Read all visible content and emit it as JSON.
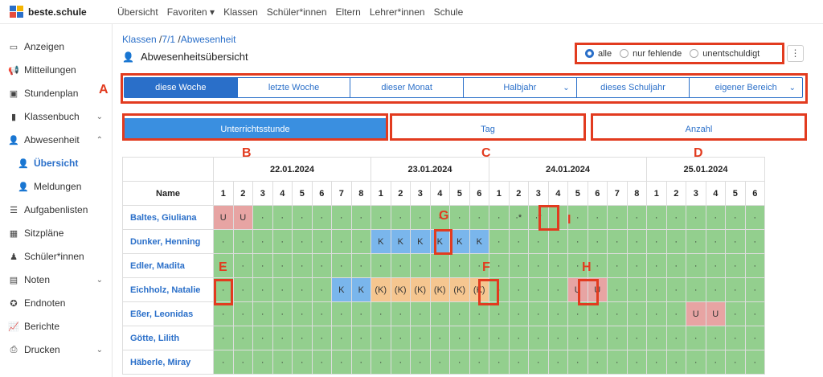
{
  "app": {
    "name": "beste.schule"
  },
  "topnav": [
    "Übersicht",
    "Favoriten ▾",
    "Klassen",
    "Schüler*innen",
    "Eltern",
    "Lehrer*innen",
    "Schule"
  ],
  "sidebar": [
    {
      "label": "Anzeigen",
      "icon": "monitor-icon",
      "glyph": "▭"
    },
    {
      "label": "Mitteilungen",
      "icon": "megaphone-icon",
      "glyph": "📢"
    },
    {
      "label": "Stundenplan",
      "icon": "briefcase-icon",
      "glyph": "▣"
    },
    {
      "label": "Klassenbuch",
      "icon": "book-icon",
      "glyph": "▮",
      "chev": "⌄"
    },
    {
      "label": "Abwesenheit",
      "icon": "user-check-icon",
      "glyph": "👤",
      "chev": "⌃"
    },
    {
      "label": "Übersicht",
      "icon": "user-check-icon",
      "glyph": "👤",
      "sub": true,
      "active": true
    },
    {
      "label": "Meldungen",
      "icon": "user-check-icon",
      "glyph": "👤",
      "sub": true
    },
    {
      "label": "Aufgabenlisten",
      "icon": "list-icon",
      "glyph": "☰"
    },
    {
      "label": "Sitzpläne",
      "icon": "grid-icon",
      "glyph": "▦"
    },
    {
      "label": "Schüler*innen",
      "icon": "person-icon",
      "glyph": "♟"
    },
    {
      "label": "Noten",
      "icon": "document-icon",
      "glyph": "▤",
      "chev": "⌄"
    },
    {
      "label": "Endnoten",
      "icon": "award-icon",
      "glyph": "✪"
    },
    {
      "label": "Berichte",
      "icon": "chart-icon",
      "glyph": "📈"
    },
    {
      "label": "Drucken",
      "icon": "printer-icon",
      "glyph": "⎙",
      "chev": "⌄"
    }
  ],
  "breadcrumb": {
    "part1": "Klassen",
    "part2": "7/1",
    "part3": "Abwesenheit"
  },
  "page_title": "Abwesenheitsübersicht",
  "filter": {
    "options": [
      "alle",
      "nur fehlende",
      "unentschuldigt"
    ],
    "selected": "alle"
  },
  "kebab": "⋮",
  "period_tabs": [
    "diese Woche",
    "letzte Woche",
    "dieser Monat",
    "Halbjahr",
    "dieses Schuljahr",
    "eigener Bereich"
  ],
  "view_buttons": [
    "Unterrichtsstunde",
    "Tag",
    "Anzahl"
  ],
  "annotations": {
    "A": "A",
    "B": "B",
    "C": "C",
    "D": "D",
    "E": "E",
    "F": "F",
    "G": "G",
    "H": "H",
    "I": "I"
  },
  "table": {
    "name_header": "Name",
    "days": [
      {
        "date": "22.01.2024",
        "periods": [
          1,
          2,
          3,
          4,
          5,
          6,
          7,
          8
        ]
      },
      {
        "date": "23.01.2024",
        "periods": [
          1,
          2,
          3,
          4,
          5,
          6
        ]
      },
      {
        "date": "24.01.2024",
        "periods": [
          1,
          2,
          3,
          4,
          5,
          6,
          7,
          8
        ]
      },
      {
        "date": "25.01.2024",
        "periods": [
          1,
          2,
          3,
          4,
          5,
          6
        ]
      }
    ],
    "rows": [
      {
        "name": "Baltes, Giuliana",
        "cells": [
          "U",
          "U",
          "·",
          "·",
          "·",
          "·",
          "·",
          "·",
          "·",
          "·",
          "·",
          "·",
          "·",
          "·",
          "·",
          "·*",
          "·*",
          "·",
          "·",
          "·",
          "·",
          "·",
          "·",
          "·",
          "·",
          "·",
          "·",
          "·"
        ]
      },
      {
        "name": "Dunker, Henning",
        "cells": [
          "·",
          "·",
          "·",
          "·",
          "·",
          "·",
          "·",
          "·",
          "K",
          "K",
          "K",
          "K",
          "K",
          "K",
          "·",
          "·",
          "·",
          "·",
          "·",
          "·",
          "·",
          "·",
          "·",
          "·",
          "·",
          "·",
          "·",
          "·"
        ]
      },
      {
        "name": "Edler, Madita",
        "cells": [
          "·",
          "·",
          "·",
          "·",
          "·",
          "·",
          "·",
          "·",
          "·",
          "·",
          "·",
          "·",
          "·",
          "·",
          "·",
          "·",
          "·",
          "·",
          "·",
          "·",
          "·",
          "·",
          "·",
          "·",
          "·",
          "·",
          "·",
          "·"
        ]
      },
      {
        "name": "Eichholz, Natalie",
        "cells": [
          "·",
          "·",
          "·",
          "·",
          "·",
          "·",
          "K",
          "K",
          "(K)",
          "(K)",
          "(K)",
          "(K)",
          "(K)",
          "(K)",
          "·",
          "·",
          "·",
          "·",
          "U",
          "U",
          "·",
          "·",
          "·",
          "·",
          "·",
          "·",
          "·",
          "·"
        ]
      },
      {
        "name": "Eßer, Leonidas",
        "cells": [
          "·",
          "·",
          "·",
          "·",
          "·",
          "·",
          "·",
          "·",
          "·",
          "·",
          "·",
          "·",
          "·",
          "·",
          "·",
          "·",
          "·",
          "·",
          "·",
          "·",
          "·",
          "·",
          "·",
          "·",
          "U",
          "U",
          "·",
          "·"
        ]
      },
      {
        "name": "Götte, Lilith",
        "cells": [
          "·",
          "·",
          "·",
          "·",
          "·",
          "·",
          "·",
          "·",
          "·",
          "·",
          "·",
          "·",
          "·",
          "·",
          "·",
          "·",
          "·",
          "·",
          "·",
          "·",
          "·",
          "·",
          "·",
          "·",
          "·",
          "·",
          "·",
          "·"
        ]
      },
      {
        "name": "Häberle, Miray",
        "cells": [
          "·",
          "·",
          "·",
          "·",
          "·",
          "·",
          "·",
          "·",
          "·",
          "·",
          "·",
          "·",
          "·",
          "·",
          "·",
          "·",
          "·",
          "·",
          "·",
          "·",
          "·",
          "·",
          "·",
          "·",
          "·",
          "·",
          "·",
          "·"
        ]
      }
    ]
  }
}
